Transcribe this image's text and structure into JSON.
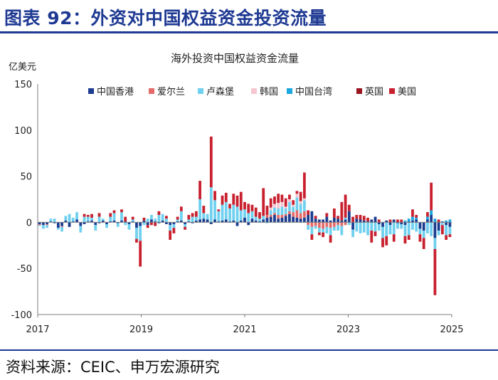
{
  "page": {
    "figure_title": "图表 92：外资对中国权益资金投资流量",
    "source": "资料来源：CEIC、申万宏源研究"
  },
  "chart_data": {
    "type": "bar",
    "stacked": true,
    "title": "海外投资中国权益资金流量",
    "ylabel": "亿美元",
    "xlabel": "",
    "ylim": [
      -100,
      150
    ],
    "yticks": [
      -100,
      -50,
      0,
      50,
      100,
      150
    ],
    "x_tick_labels": [
      "2017",
      "2019",
      "2021",
      "2023",
      "2025"
    ],
    "legend_position": "top",
    "grid": false,
    "series": [
      {
        "name": "中国香港",
        "color": "#1b3c8f",
        "values": [
          -2,
          -3,
          -2,
          1,
          -1,
          -6,
          -4,
          2,
          -5,
          1,
          3,
          -4,
          -2,
          1,
          2,
          -3,
          -1,
          2,
          -2,
          1,
          2,
          -1,
          2,
          1,
          -2,
          1,
          -6,
          -4,
          2,
          -3,
          3,
          1,
          -1,
          2,
          -2,
          -3,
          -2,
          1,
          2,
          -2,
          1,
          -1,
          2,
          3,
          4,
          3,
          -2,
          3,
          1,
          2,
          3,
          1,
          2,
          -4,
          2,
          5,
          -3,
          4,
          2,
          1,
          3,
          5,
          6,
          8,
          4,
          5,
          7,
          9,
          6,
          5,
          4,
          5,
          8,
          12,
          4,
          3,
          3,
          6,
          2,
          5,
          4,
          2,
          3,
          12,
          -8,
          4,
          3,
          2,
          1,
          3,
          6,
          -2,
          -5,
          2,
          -3,
          3,
          -1,
          -2,
          -3,
          1,
          2,
          3,
          -7,
          -9,
          3,
          8,
          -17,
          -9,
          1,
          -3,
          -5
        ]
      },
      {
        "name": "爱尔兰",
        "color": "#e46a6a",
        "values": [
          -1,
          0,
          -1,
          0,
          0,
          0,
          -1,
          0,
          0,
          0,
          0,
          0,
          0,
          0,
          0,
          0,
          0,
          0,
          0,
          0,
          0,
          0,
          0,
          0,
          0,
          0,
          0,
          0,
          0,
          0,
          0,
          0,
          0,
          0,
          0,
          0,
          0,
          0,
          0,
          0,
          0,
          0,
          0,
          0,
          0,
          0,
          0,
          0,
          0,
          0,
          0,
          0,
          0,
          0,
          0,
          0,
          0,
          0,
          0,
          0,
          0,
          3,
          2,
          2,
          4,
          3,
          2,
          3,
          5,
          8,
          6,
          7,
          -3,
          -5,
          -4,
          -6,
          -7,
          -5,
          -6,
          -5,
          -3,
          -4,
          -3,
          0,
          0,
          0,
          0,
          0,
          0,
          0,
          0,
          0,
          0,
          0,
          0,
          0,
          0,
          0,
          0,
          0,
          0,
          0,
          0,
          0,
          0,
          0,
          0,
          0,
          0,
          0,
          0
        ]
      },
      {
        "name": "卢森堡",
        "color": "#6fd0ef",
        "values": [
          -1,
          -4,
          -3,
          3,
          4,
          -2,
          -5,
          5,
          9,
          4,
          8,
          -7,
          6,
          5,
          3,
          -6,
          6,
          2,
          -4,
          5,
          8,
          -4,
          9,
          -3,
          -6,
          2,
          -12,
          -16,
          -3,
          4,
          5,
          3,
          8,
          7,
          4,
          -6,
          -4,
          2,
          10,
          -3,
          2,
          6,
          4,
          22,
          6,
          6,
          38,
          21,
          11,
          17,
          19,
          14,
          17,
          17,
          11,
          9,
          10,
          8,
          4,
          3,
          4,
          -1,
          5,
          6,
          7,
          9,
          6,
          10,
          6,
          14,
          10,
          12,
          -5,
          -8,
          -3,
          -5,
          -4,
          -7,
          -8,
          -4,
          -6,
          -10,
          2,
          -3,
          -8,
          -10,
          -12,
          -11,
          -14,
          -9,
          -10,
          -7,
          -12,
          -15,
          -10,
          -13,
          -6,
          -5,
          -12,
          -14,
          -8,
          -10,
          -6,
          -8,
          -12,
          -15,
          -12,
          -5,
          -3,
          -11,
          -8
        ]
      },
      {
        "name": "韩国",
        "color": "#f4c6cf",
        "values": [
          0,
          0,
          0,
          0,
          0,
          0,
          0,
          0,
          0,
          0,
          0,
          0,
          0,
          0,
          0,
          0,
          0,
          0,
          0,
          0,
          0,
          0,
          0,
          0,
          0,
          0,
          0,
          0,
          0,
          0,
          0,
          0,
          0,
          0,
          0,
          0,
          0,
          0,
          0,
          0,
          0,
          0,
          0,
          0,
          0,
          0,
          0,
          0,
          0,
          0,
          0,
          0,
          0,
          0,
          0,
          0,
          0,
          0,
          0,
          0,
          0,
          0,
          3,
          4,
          6,
          5,
          2,
          3,
          2,
          4,
          3,
          2,
          0,
          0,
          0,
          0,
          0,
          0,
          0,
          0,
          0,
          0,
          0,
          0,
          0,
          0,
          0,
          0,
          0,
          0,
          0,
          0,
          0,
          0,
          0,
          0,
          0,
          0,
          0,
          0,
          0,
          0,
          0,
          0,
          0,
          0,
          0,
          0,
          0,
          0,
          0
        ]
      },
      {
        "name": "中国台湾",
        "color": "#1aa7e0",
        "values": [
          0,
          0,
          0,
          0,
          0,
          0,
          0,
          0,
          0,
          0,
          0,
          0,
          0,
          0,
          0,
          0,
          0,
          0,
          0,
          0,
          0,
          0,
          0,
          0,
          0,
          0,
          0,
          0,
          0,
          0,
          0,
          0,
          0,
          0,
          0,
          0,
          0,
          0,
          0,
          0,
          0,
          0,
          0,
          0,
          0,
          0,
          0,
          0,
          0,
          0,
          0,
          0,
          0,
          0,
          0,
          0,
          0,
          0,
          0,
          0,
          0,
          0,
          0,
          0,
          0,
          0,
          0,
          0,
          0,
          0,
          0,
          0,
          0,
          0,
          0,
          0,
          0,
          0,
          0,
          0,
          0,
          0,
          0,
          0,
          0,
          0,
          0,
          0,
          0,
          0,
          0,
          0,
          0,
          0,
          0,
          0,
          0,
          0,
          2,
          3,
          4,
          2,
          0,
          0,
          3,
          5,
          4,
          0,
          0,
          2,
          3
        ]
      },
      {
        "name": "英国",
        "color": "#9a1520",
        "values": [
          0,
          0,
          0,
          0,
          0,
          0,
          0,
          0,
          0,
          0,
          0,
          0,
          0,
          0,
          0,
          0,
          0,
          0,
          0,
          0,
          0,
          0,
          0,
          0,
          0,
          0,
          0,
          0,
          0,
          0,
          0,
          0,
          0,
          0,
          0,
          0,
          0,
          0,
          0,
          0,
          0,
          0,
          0,
          0,
          0,
          0,
          0,
          0,
          0,
          0,
          0,
          0,
          0,
          0,
          0,
          0,
          0,
          0,
          0,
          0,
          0,
          0,
          0,
          0,
          0,
          0,
          0,
          0,
          0,
          0,
          0,
          0,
          0,
          0,
          0,
          0,
          0,
          0,
          0,
          0,
          0,
          0,
          0,
          0,
          0,
          0,
          0,
          0,
          0,
          0,
          0,
          0,
          0,
          0,
          0,
          0,
          0,
          0,
          0,
          0,
          0,
          0,
          0,
          0,
          0,
          0,
          0,
          0,
          0,
          0,
          0
        ]
      },
      {
        "name": "美国",
        "color": "#c8202e",
        "values": [
          0,
          0,
          0,
          0,
          0,
          0,
          0,
          0,
          0,
          0,
          0,
          0,
          3,
          2,
          4,
          0,
          4,
          0,
          0,
          4,
          3,
          0,
          3,
          5,
          0,
          3,
          -4,
          -28,
          3,
          -3,
          -3,
          -4,
          4,
          0,
          3,
          -10,
          -6,
          3,
          5,
          -3,
          5,
          4,
          6,
          20,
          8,
          0,
          55,
          10,
          2,
          10,
          10,
          5,
          12,
          12,
          20,
          8,
          10,
          7,
          10,
          7,
          30,
          10,
          10,
          8,
          10,
          8,
          9,
          5,
          5,
          3,
          10,
          28,
          5,
          -6,
          3,
          -3,
          -5,
          4,
          -8,
          10,
          3,
          20,
          25,
          7,
          6,
          4,
          5,
          5,
          4,
          -13,
          -5,
          3,
          -10,
          -10,
          3,
          -8,
          3,
          3,
          -8,
          -5,
          8,
          3,
          -8,
          -12,
          5,
          30,
          -50,
          3,
          -10,
          -5,
          -3
        ]
      }
    ]
  }
}
